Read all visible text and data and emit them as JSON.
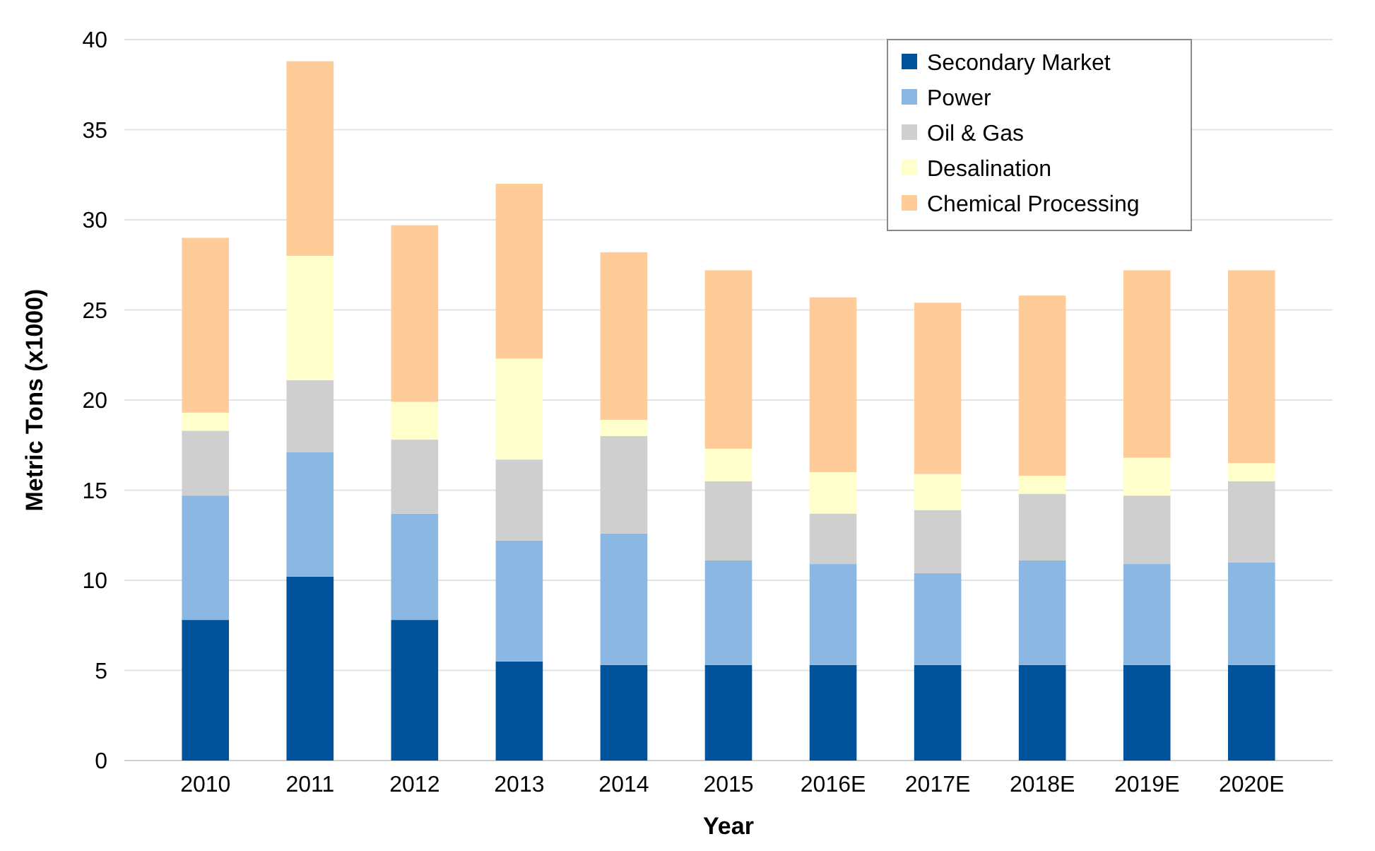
{
  "chart_data": {
    "type": "bar",
    "stacked": true,
    "xlabel": "Year",
    "ylabel": "Metric Tons (x1000)",
    "categories": [
      "2010",
      "2011",
      "2012",
      "2013",
      "2014",
      "2015",
      "2016E",
      "2017E",
      "2018E",
      "2019E",
      "2020E"
    ],
    "series": [
      {
        "name": "Secondary Market",
        "color": "#00529b",
        "values": [
          7.8,
          10.2,
          7.8,
          5.5,
          5.3,
          5.3,
          5.3,
          5.3,
          5.3,
          5.3,
          5.3
        ]
      },
      {
        "name": "Power",
        "color": "#8ab8e3",
        "values": [
          6.9,
          6.9,
          5.9,
          6.7,
          7.3,
          5.8,
          5.6,
          5.1,
          5.8,
          5.6,
          5.7
        ]
      },
      {
        "name": "Oil & Gas",
        "color": "#d0cfd0",
        "values": [
          3.6,
          4.0,
          4.1,
          4.5,
          5.4,
          4.4,
          2.8,
          3.5,
          3.7,
          3.8,
          4.5
        ]
      },
      {
        "name": "Desalination",
        "color": "#ffffcc",
        "values": [
          1.0,
          6.9,
          2.1,
          5.6,
          0.9,
          1.8,
          2.3,
          2.0,
          1.0,
          2.1,
          1.0
        ]
      },
      {
        "name": "Chemical Processing",
        "color": "#ffcc99",
        "values": [
          9.7,
          10.8,
          9.8,
          9.7,
          9.3,
          9.9,
          9.7,
          9.5,
          10.0,
          10.4,
          10.7
        ]
      }
    ],
    "ylim": [
      0,
      40
    ],
    "yticks": [
      0,
      5,
      10,
      15,
      20,
      25,
      30,
      35,
      40
    ],
    "grid": "y",
    "legend": "top right"
  }
}
